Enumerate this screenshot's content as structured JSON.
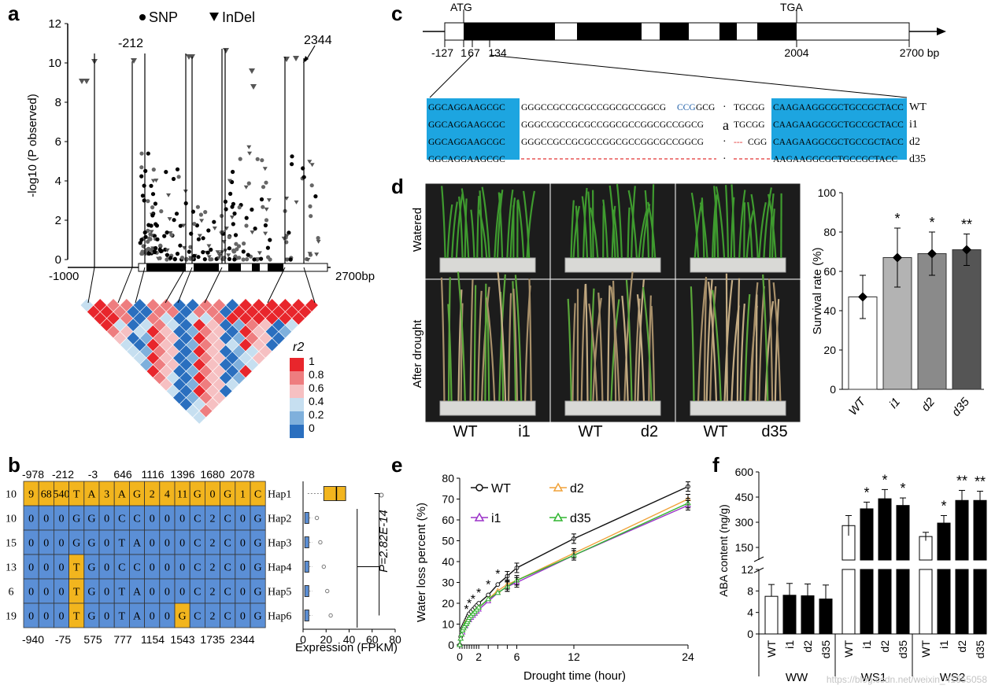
{
  "figure": {
    "panel_labels": [
      "a",
      "b",
      "c",
      "d",
      "e",
      "f"
    ],
    "watermark": "https://blog.csdn.net/weixin_41655058"
  },
  "panel_a": {
    "legend_snp": "SNP",
    "legend_indel": "InDel",
    "ylabel": "-log10 (P observed)",
    "yticks": [
      "0",
      "2",
      "4",
      "6",
      "8",
      "10",
      "12"
    ],
    "x_left": "-1000",
    "x_right": "2700bp",
    "callout_left": "-212",
    "callout_right": "2344",
    "r2_title": "r2",
    "r2_ticks": [
      "1",
      "0.8",
      "0.6",
      "0.4",
      "0.2",
      "0"
    ],
    "r2_colors": [
      "#e8262c",
      "#ee7d7f",
      "#f6c0c2",
      "#c6dff0",
      "#7fb0dc",
      "#2a6fbf"
    ]
  },
  "panel_b": {
    "top_positions": [
      "-978",
      "-212",
      "-3",
      "646",
      "1116",
      "1396",
      "1680",
      "2078"
    ],
    "bottom_positions": [
      "-940",
      "-75",
      "575",
      "777",
      "1154",
      "1543",
      "1735",
      "2344"
    ],
    "rows": [
      {
        "count": "10",
        "cells": [
          "9",
          "68",
          "540",
          "T",
          "A",
          "3",
          "A",
          "G",
          "2",
          "4",
          "11",
          "G",
          "0",
          "G",
          "1",
          "C"
        ],
        "hap": "Hap1"
      },
      {
        "count": "10",
        "cells": [
          "0",
          "0",
          "0",
          "G",
          "G",
          "0",
          "C",
          "C",
          "0",
          "0",
          "0",
          "C",
          "2",
          "C",
          "0",
          "G"
        ],
        "hap": "Hap2"
      },
      {
        "count": "15",
        "cells": [
          "0",
          "0",
          "0",
          "G",
          "G",
          "0",
          "T",
          "A",
          "0",
          "0",
          "0",
          "C",
          "2",
          "C",
          "0",
          "G"
        ],
        "hap": "Hap3"
      },
      {
        "count": "13",
        "cells": [
          "0",
          "0",
          "0",
          "T",
          "G",
          "0",
          "C",
          "C",
          "0",
          "0",
          "0",
          "C",
          "2",
          "C",
          "0",
          "G"
        ],
        "hap": "Hap4"
      },
      {
        "count": "6",
        "cells": [
          "0",
          "0",
          "0",
          "T",
          "G",
          "0",
          "T",
          "A",
          "0",
          "0",
          "0",
          "C",
          "2",
          "C",
          "0",
          "G"
        ],
        "hap": "Hap5"
      },
      {
        "count": "19",
        "cells": [
          "0",
          "0",
          "0",
          "T",
          "G",
          "0",
          "T",
          "A",
          "0",
          "0",
          "G",
          "C",
          "2",
          "C",
          "0",
          "G"
        ],
        "hap": "Hap6"
      }
    ],
    "pvalue": "P=2.82E-14",
    "xticks": [
      "0",
      "20",
      "40",
      "60",
      "80"
    ],
    "xlabel": "Expression (FPKM)",
    "colors": {
      "yellow": "#f2b51e",
      "blue": "#5b8fd6"
    }
  },
  "panel_c": {
    "atg": "ATG",
    "tga": "TGA",
    "positions": [
      "-127",
      "1",
      "67",
      "134",
      "2004",
      "2700 bp"
    ],
    "seq_rows": [
      {
        "left": "GGCAGGAAGCGC",
        "mid": "GGGCCGCCGCGCCGGCGCCGGCG",
        "mid2": "CCG",
        "mid3": "GCG",
        "dot": "·",
        "post": "TGCGG",
        "hl": "CAAGAAGGCGCTGCCGCTACC",
        "name": "WT"
      },
      {
        "left": "GGCAGGAAGCGC",
        "mid": "GGGCCGCCGCGCCGGCGCCGGCGCCGGCG",
        "mid2": "",
        "mid3": "",
        "dot": "a",
        "post": "TGCGG",
        "hl": "CAAGAAGGCGCTGCCGCTACC",
        "name": "i1"
      },
      {
        "left": "GGCAGGAAGCGC",
        "mid": "GGGCCGCCGCGCCGGCGCCGGCGCCGGCG",
        "mid2": "",
        "mid3": "",
        "dot": "·",
        "post": "---CGG",
        "hl": "CAAGAAGGCGCTGCCGCTACC",
        "name": "d2"
      },
      {
        "left": "GGCAGGAAGCGC",
        "mid": "",
        "mid2": "",
        "mid3": "",
        "dot": "·",
        "post": "",
        "hl": "AAGAAGGCGCTGCCGCTACC",
        "name": "d35"
      }
    ]
  },
  "panel_d": {
    "row_watered": "Watered",
    "row_drought": "After drought",
    "photo_labels": [
      [
        "WT",
        "i1"
      ],
      [
        "WT",
        "d2"
      ],
      [
        "WT",
        "d35"
      ]
    ],
    "chart_data": {
      "type": "bar",
      "categories": [
        "WT",
        "i1",
        "d2",
        "d35"
      ],
      "values": [
        47,
        67,
        69,
        71
      ],
      "errors": [
        11,
        15,
        11,
        8
      ],
      "significance": [
        "",
        "*",
        "*",
        "**"
      ],
      "ylabel": "Survival rate (%)",
      "yticks": [
        "0",
        "20",
        "40",
        "60",
        "80",
        "100"
      ],
      "ylim": [
        0,
        100
      ],
      "colors": [
        "#ffffff",
        "#b3b3b3",
        "#8a8a8a",
        "#555555"
      ]
    }
  },
  "panel_e": {
    "chart_data": {
      "type": "line",
      "x": [
        0,
        0.1,
        0.2,
        0.3,
        0.4,
        0.5,
        0.6,
        0.7,
        0.8,
        0.9,
        1,
        1.2,
        1.4,
        1.6,
        1.8,
        2,
        3,
        4,
        5,
        6,
        12,
        24
      ],
      "series": [
        {
          "name": "WT",
          "color": "#111111",
          "marker": "circle",
          "values": [
            0,
            4,
            6,
            8,
            9,
            10,
            11,
            12,
            13,
            14,
            15,
            16,
            17,
            18,
            19,
            20,
            24,
            29,
            33,
            37,
            51,
            76
          ]
        },
        {
          "name": "d2",
          "color": "#f0a23a",
          "marker": "triangle",
          "values": [
            0,
            3,
            5,
            7,
            8,
            9,
            10,
            11,
            11,
            12,
            13,
            14,
            15,
            16,
            17,
            18,
            22,
            26,
            29,
            31,
            44,
            70
          ]
        },
        {
          "name": "i1",
          "color": "#9b32c8",
          "marker": "triangle",
          "values": [
            0,
            3,
            5,
            6,
            8,
            9,
            9,
            10,
            11,
            12,
            12,
            13,
            14,
            15,
            16,
            17,
            21,
            25,
            28,
            30,
            43,
            67
          ]
        },
        {
          "name": "d35",
          "color": "#31b531",
          "marker": "triangle",
          "values": [
            0,
            3,
            5,
            7,
            8,
            9,
            10,
            10,
            11,
            12,
            13,
            14,
            15,
            16,
            17,
            18,
            22,
            25,
            28,
            31,
            43,
            68
          ]
        }
      ],
      "significance_x": [
        0.7,
        1,
        1.4,
        2,
        3,
        4
      ],
      "significance_mark": "*",
      "xticks": [
        "0",
        "2",
        "6",
        "12",
        "24"
      ],
      "yticks": [
        "0",
        "10",
        "20",
        "30",
        "40",
        "50",
        "60",
        "70",
        "80"
      ],
      "xlabel": "Drought time (hour)",
      "ylabel": "Water loss percent (%)",
      "xlim": [
        0,
        24
      ],
      "ylim": [
        0,
        80
      ]
    }
  },
  "panel_f": {
    "chart_data": {
      "type": "bar",
      "groups": [
        "WW",
        "WS1",
        "WS2"
      ],
      "categories": [
        "WT",
        "i1",
        "d2",
        "d35",
        "WT",
        "i1",
        "d2",
        "d35",
        "WT",
        "i1",
        "d2",
        "d35"
      ],
      "values": [
        7,
        7.2,
        7.1,
        6.5,
        280,
        380,
        440,
        400,
        215,
        295,
        430,
        430
      ],
      "errors": [
        2.2,
        2.2,
        2.2,
        2.6,
        60,
        40,
        55,
        45,
        25,
        45,
        60,
        55
      ],
      "significance": [
        "",
        "",
        "",
        "",
        "",
        "*",
        "*",
        "*",
        "",
        "*",
        "**",
        "**"
      ],
      "fill": [
        "#ffffff",
        "#000000",
        "#000000",
        "#000000",
        "#ffffff",
        "#000000",
        "#000000",
        "#000000",
        "#ffffff",
        "#000000",
        "#000000",
        "#000000"
      ],
      "ylabel": "ABA content (ng/g)",
      "yticks_low": [
        "0",
        "4",
        "8",
        "12"
      ],
      "yticks_high": [
        "150",
        "300",
        "450",
        "600"
      ],
      "ylim_low": [
        0,
        12
      ],
      "ylim_high": [
        12,
        600
      ]
    }
  }
}
